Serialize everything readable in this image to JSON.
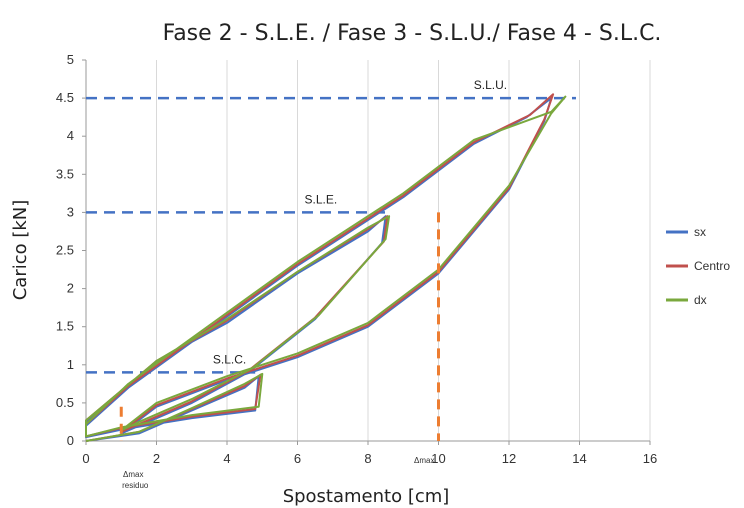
{
  "chart_data": {
    "type": "line",
    "title": "Fase 2 - S.L.E. / Fase 3 - S.L.U./ Fase 4 - S.L.C.",
    "xlabel": "Spostamento [cm]",
    "ylabel": "Carico [kN]",
    "xlim": [
      0,
      16
    ],
    "ylim": [
      0,
      5
    ],
    "xticks": [
      "0",
      "2",
      "4",
      "6",
      "8",
      "10",
      "12",
      "14",
      "16"
    ],
    "yticks": [
      "0",
      "0.5",
      "1",
      "1.5",
      "2",
      "2.5",
      "3",
      "3.5",
      "4",
      "4.5",
      "5"
    ],
    "grid": "vertical",
    "legend_position": "right",
    "legend": [
      "sx",
      "Centro",
      "dx"
    ],
    "series": [
      {
        "name": "sx",
        "color": "#4472c4",
        "points": [
          [
            0,
            0
          ],
          [
            1.5,
            0.1
          ],
          [
            3,
            0.4
          ],
          [
            4.5,
            0.7
          ],
          [
            4.9,
            0.85
          ],
          [
            4.8,
            0.4
          ],
          [
            3,
            0.3
          ],
          [
            1,
            0.15
          ],
          [
            0,
            0.05
          ],
          [
            0,
            0.25
          ],
          [
            2,
            1.05
          ],
          [
            4,
            1.55
          ],
          [
            6,
            2.2
          ],
          [
            8,
            2.75
          ],
          [
            8.5,
            2.95
          ],
          [
            8.4,
            2.6
          ],
          [
            6.5,
            1.6
          ],
          [
            4.6,
            0.9
          ],
          [
            3,
            0.5
          ],
          [
            1.5,
            0.2
          ],
          [
            1,
            0.1
          ],
          [
            2,
            0.45
          ],
          [
            4,
            0.8
          ],
          [
            6,
            1.1
          ],
          [
            8,
            1.5
          ],
          [
            10,
            2.2
          ],
          [
            12,
            3.3
          ],
          [
            13,
            4.2
          ],
          [
            13.2,
            4.5
          ],
          [
            12.5,
            4.25
          ],
          [
            11,
            3.9
          ],
          [
            9,
            3.2
          ],
          [
            6,
            2.3
          ],
          [
            3,
            1.3
          ],
          [
            1.2,
            0.7
          ],
          [
            0,
            0.2
          ]
        ]
      },
      {
        "name": "Centro",
        "color": "#c0504d",
        "points": [
          [
            0,
            0
          ],
          [
            1.5,
            0.12
          ],
          [
            3,
            0.42
          ],
          [
            4.5,
            0.72
          ],
          [
            4.95,
            0.87
          ],
          [
            4.8,
            0.42
          ],
          [
            3,
            0.32
          ],
          [
            1,
            0.17
          ],
          [
            0,
            0.06
          ],
          [
            0,
            0.27
          ],
          [
            2,
            1.05
          ],
          [
            4,
            1.58
          ],
          [
            6,
            2.22
          ],
          [
            8,
            2.78
          ],
          [
            8.55,
            2.95
          ],
          [
            8.45,
            2.62
          ],
          [
            6.5,
            1.62
          ],
          [
            4.6,
            0.92
          ],
          [
            3,
            0.52
          ],
          [
            1.5,
            0.22
          ],
          [
            1,
            0.12
          ],
          [
            2,
            0.47
          ],
          [
            4,
            0.82
          ],
          [
            6,
            1.12
          ],
          [
            8,
            1.52
          ],
          [
            10,
            2.22
          ],
          [
            12,
            3.32
          ],
          [
            13,
            4.22
          ],
          [
            13.25,
            4.55
          ],
          [
            12.6,
            4.28
          ],
          [
            11,
            3.92
          ],
          [
            9,
            3.22
          ],
          [
            6,
            2.32
          ],
          [
            3,
            1.32
          ],
          [
            1.2,
            0.72
          ],
          [
            0,
            0.22
          ]
        ]
      },
      {
        "name": "dx",
        "color": "#7aa83d",
        "points": [
          [
            0,
            0
          ],
          [
            1.5,
            0.12
          ],
          [
            3,
            0.43
          ],
          [
            4.5,
            0.75
          ],
          [
            5,
            0.88
          ],
          [
            4.9,
            0.45
          ],
          [
            3,
            0.34
          ],
          [
            1,
            0.18
          ],
          [
            0,
            0.06
          ],
          [
            0,
            0.27
          ],
          [
            2,
            1.05
          ],
          [
            4,
            1.6
          ],
          [
            6,
            2.22
          ],
          [
            8,
            2.8
          ],
          [
            8.6,
            2.95
          ],
          [
            8.5,
            2.65
          ],
          [
            6.6,
            1.65
          ],
          [
            4.7,
            0.95
          ],
          [
            3,
            0.55
          ],
          [
            1.5,
            0.25
          ],
          [
            1,
            0.14
          ],
          [
            2,
            0.5
          ],
          [
            4,
            0.85
          ],
          [
            6,
            1.15
          ],
          [
            8,
            1.55
          ],
          [
            10,
            2.25
          ],
          [
            12,
            3.35
          ],
          [
            13.2,
            4.3
          ],
          [
            13.6,
            4.52
          ],
          [
            13.2,
            4.32
          ],
          [
            11,
            3.95
          ],
          [
            9,
            3.25
          ],
          [
            6,
            2.35
          ],
          [
            3,
            1.35
          ],
          [
            1.2,
            0.75
          ],
          [
            0,
            0.22
          ]
        ]
      }
    ],
    "reference_lines": [
      {
        "label": "S.L.U.",
        "y": 4.5,
        "x_end": 13.9,
        "label_x": 11,
        "color": "#4472c4"
      },
      {
        "label": "S.L.E.",
        "y": 3,
        "x_end": 8.5,
        "label_x": 6.2,
        "color": "#4472c4"
      },
      {
        "label": "S.L.C.",
        "y": 0.9,
        "x_end": 4.8,
        "label_x": 3.6,
        "color": "#4472c4"
      }
    ],
    "vertical_markers": [
      {
        "x": 10,
        "y_top": 3,
        "label": "Δmax",
        "color": "#ed7d31"
      },
      {
        "x": 1,
        "y_top": 0.45,
        "label": "Δmax",
        "label2": "residuo",
        "color": "#ed7d31"
      }
    ]
  }
}
